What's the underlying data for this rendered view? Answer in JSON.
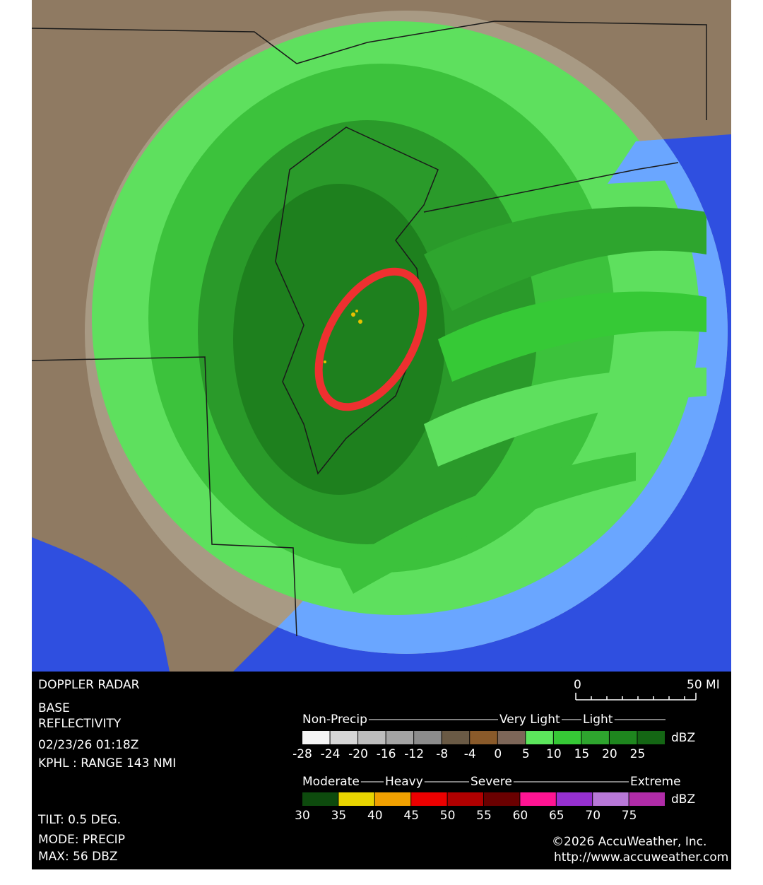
{
  "info": {
    "title": "DOPPLER RADAR",
    "product": [
      "BASE",
      "REFLECTIVITY"
    ],
    "timestamp": "02/23/26 01:18Z",
    "station": "KPHL :  RANGE 143 NMI",
    "tilt": "TILT: 0.5 DEG.",
    "mode": "MODE: PRECIP",
    "max": "MAX: 56 DBZ"
  },
  "scale_bar": {
    "start": "0",
    "end": "50 MI"
  },
  "legend": [
    {
      "labels": [
        "Non-Precip",
        "Very Light",
        "Light"
      ],
      "unit": "dBZ",
      "ticks": [
        -28,
        -24,
        -20,
        -16,
        -12,
        -8,
        -4,
        0,
        5,
        10,
        15,
        20,
        25
      ],
      "colors": [
        "#f4f4f4",
        "#d6d6d6",
        "#bdbdbd",
        "#a4a4a4",
        "#8c8c8c",
        "#6a5a45",
        "#8a5a2a",
        "#7d6658",
        "#5ce65c",
        "#36c936",
        "#2ea52e",
        "#1e861e",
        "#146614"
      ]
    },
    {
      "labels": [
        "Moderate",
        "Heavy",
        "Severe",
        "Extreme"
      ],
      "unit": "dBZ",
      "ticks": [
        30,
        35,
        40,
        45,
        50,
        55,
        60,
        65,
        70,
        75
      ],
      "colors": [
        "#0d4a0d",
        "#e8d400",
        "#f0a000",
        "#ec0000",
        "#b00000",
        "#6a0000",
        "#ff1493",
        "#9630d0",
        "#b878d8",
        "#b02ca8"
      ]
    }
  ],
  "credit": {
    "copyright": "©2026 AccuWeather, Inc.",
    "url": "http://www.accuweather.com"
  }
}
